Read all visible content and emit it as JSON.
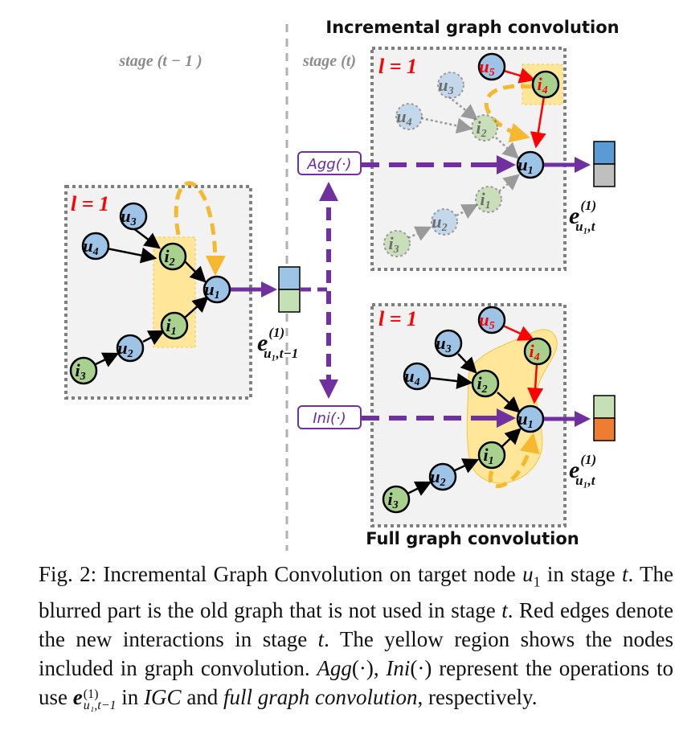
{
  "figure": {
    "title_top": "Incremental graph convolution",
    "title_bottom": "Full graph convolution",
    "stage_prev": "stage (t − 1 )",
    "stage_curr": "stage (t)",
    "layer_label": "l = 1",
    "op_agg": "Agg(·)",
    "op_ini": "Ini(·)",
    "emb_prev": {
      "base": "e",
      "sup": "(1)",
      "sub": "u₁,t−1"
    },
    "emb_curr": {
      "base": "e",
      "sup": "(1)",
      "sub": "u₁,t"
    },
    "nodes": {
      "u1": {
        "base": "u",
        "sub": "1"
      },
      "u2": {
        "base": "u",
        "sub": "2"
      },
      "u3": {
        "base": "u",
        "sub": "3"
      },
      "u4": {
        "base": "u",
        "sub": "4"
      },
      "u5": {
        "base": "u",
        "sub": "5"
      },
      "i1": {
        "base": "i",
        "sub": "1"
      },
      "i2": {
        "base": "i",
        "sub": "2"
      },
      "i3": {
        "base": "i",
        "sub": "3"
      },
      "i4": {
        "base": "i",
        "sub": "4"
      }
    },
    "colors": {
      "user": "#9dc3e6",
      "item": "#a9d18e",
      "new_edge": "#ff0000",
      "arrow": "#7030a0",
      "highlight": "#ffe699",
      "loop": "#f5b82e",
      "emb_blue": "#5b9bd5",
      "emb_grey": "#bfbfbf",
      "emb_green": "#c5e0b4",
      "emb_orange": "#ed7d31"
    }
  },
  "caption": {
    "fig_label": "Fig. 2:",
    "s1": "Incremental Graph Convolution on target node ",
    "m_u1": "u",
    "m_u1_sub": "1",
    "s2": " in stage ",
    "m_t1": "t",
    "s3": ". The blurred part is the old graph that is not used in stage ",
    "m_t2": "t",
    "s4": ". Red edges denote the new interactions in stage ",
    "m_t3": "t",
    "s5": ". The yellow region shows the nodes included in graph convolution. ",
    "m_agg": "Agg",
    "s6": "(·), ",
    "m_ini": "Ini",
    "s7": "(·) represent the operations to use ",
    "m_e": "e",
    "m_e_sup": "(1)",
    "m_e_sub": "u₁,t−1",
    "s8": " in ",
    "igc": "IGC",
    "s9": " and ",
    "fgc": "full graph convolution",
    "s10": ", respectively."
  }
}
